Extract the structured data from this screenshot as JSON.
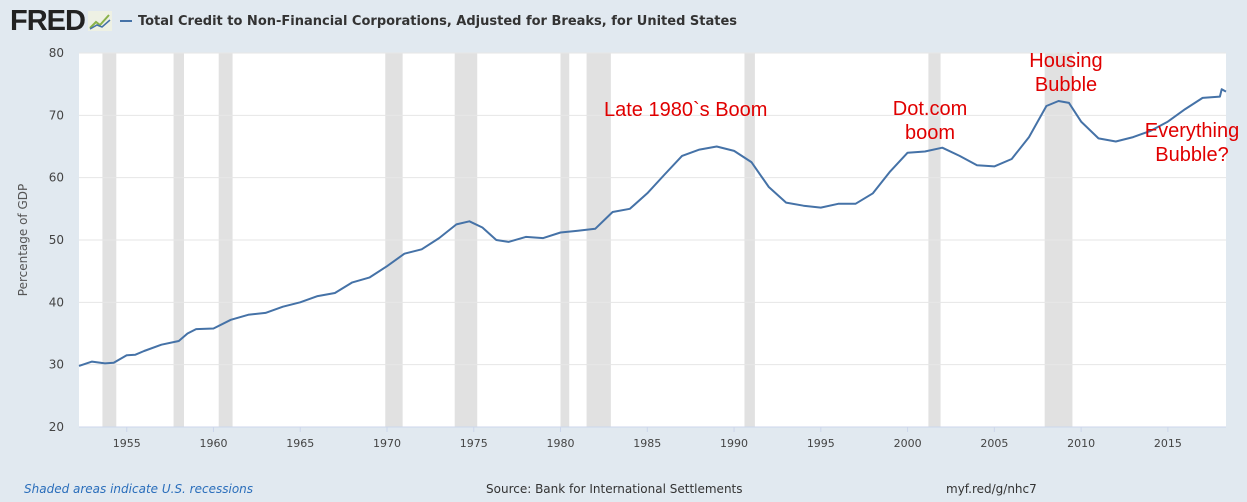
{
  "header": {
    "logo": "FRED",
    "title": "Total Credit to Non-Financial Corporations, Adjusted for Breaks, for United States"
  },
  "footer": {
    "recession_note": "Shaded areas indicate U.S. recessions",
    "source": "Source: Bank for International Settlements",
    "link": "myf.red/g/nhc7"
  },
  "colors": {
    "line": "#4572a7",
    "recession": "#e1e1e1",
    "annotation": "#e00000",
    "background": "#e1e9f0"
  },
  "chart_data": {
    "type": "line",
    "title": "Total Credit to Non-Financial Corporations, Adjusted for Breaks, for United States",
    "xlabel": "",
    "ylabel": "Percentage of GDP",
    "xlim": [
      1952.25,
      2018.35
    ],
    "ylim": [
      20,
      80
    ],
    "yticks": [
      20,
      30,
      40,
      50,
      60,
      70,
      80
    ],
    "xticks": [
      1955,
      1960,
      1965,
      1970,
      1975,
      1980,
      1985,
      1990,
      1995,
      2000,
      2005,
      2010,
      2015
    ],
    "grid": true,
    "recessions": [
      [
        1953.6,
        1954.4
      ],
      [
        1957.7,
        1958.3
      ],
      [
        1960.3,
        1961.1
      ],
      [
        1969.9,
        1970.9
      ],
      [
        1973.9,
        1975.2
      ],
      [
        1980.0,
        1980.5
      ],
      [
        1981.5,
        1982.9
      ],
      [
        1990.6,
        1991.2
      ],
      [
        2001.2,
        2001.9
      ],
      [
        2007.9,
        2009.5
      ]
    ],
    "series": [
      {
        "name": "Total Credit to Non-Financial Corporations, Adjusted for Breaks, for United States",
        "x": [
          1952.25,
          1953,
          1953.75,
          1954.25,
          1955,
          1955.5,
          1956,
          1957,
          1958,
          1958.5,
          1959,
          1960,
          1961,
          1962,
          1963,
          1964,
          1965,
          1966,
          1967,
          1968,
          1969,
          1970,
          1971,
          1972,
          1973,
          1974,
          1974.75,
          1975.5,
          1976.3,
          1977,
          1978,
          1979,
          1980,
          1981,
          1982,
          1983,
          1984,
          1985,
          1986,
          1987,
          1988,
          1989,
          1990,
          1991,
          1992,
          1993,
          1994,
          1995,
          1996,
          1997,
          1998,
          1999,
          2000,
          2001,
          2002,
          2003,
          2004,
          2005,
          2006,
          2007,
          2008,
          2008.7,
          2009.3,
          2010,
          2011,
          2012,
          2013,
          2014,
          2015,
          2016,
          2017,
          2018,
          2018.1,
          2018.35
        ],
        "values": [
          29.8,
          30.5,
          30.2,
          30.3,
          31.5,
          31.6,
          32.2,
          33.2,
          33.8,
          35,
          35.7,
          35.8,
          37.2,
          38,
          38.3,
          39.3,
          40,
          41,
          41.5,
          43.2,
          44,
          45.8,
          47.8,
          48.5,
          50.3,
          52.5,
          53.0,
          52,
          50,
          49.7,
          50.5,
          50.3,
          51.2,
          51.5,
          51.8,
          54.5,
          55,
          57.5,
          60.5,
          63.5,
          64.5,
          65,
          64.3,
          62.5,
          58.5,
          56,
          55.5,
          55.2,
          55.8,
          55.8,
          57.5,
          61,
          64,
          64.2,
          64.8,
          63.5,
          62,
          61.8,
          63,
          66.5,
          71.5,
          72.3,
          72,
          69,
          66.3,
          65.8,
          66.5,
          67.5,
          69,
          71,
          72.8,
          73,
          74.2,
          73.8
        ]
      }
    ],
    "annotations": [
      "Late 1980`s Boom",
      "Dot.com boom",
      "Housing Bubble",
      "Everything Bubble?"
    ]
  }
}
